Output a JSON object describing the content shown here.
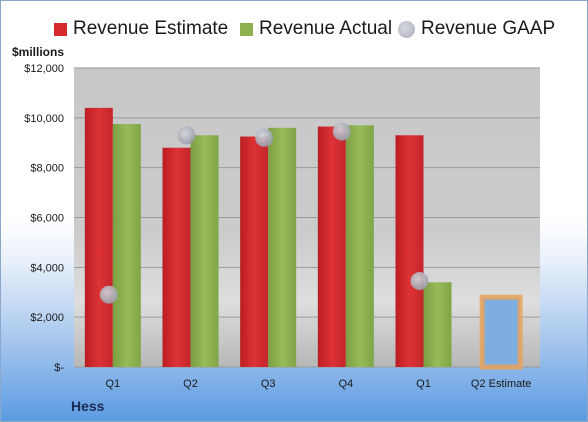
{
  "legend": {
    "estimate": "Revenue Estimate",
    "actual": "Revenue Actual",
    "gaap": "Revenue GAAP"
  },
  "unit_label": "$millions",
  "company": "Hess",
  "colors": {
    "estimate": "#d42a2e",
    "actual": "#8db050",
    "gaap": "#a9abb6",
    "forecast_fill": "#7eaee0",
    "forecast_border": "#e9a25a"
  },
  "chart_data": {
    "type": "bar",
    "categories": [
      "Q1",
      "Q2",
      "Q3",
      "Q4",
      "Q1",
      "Q2 Estimate"
    ],
    "series": [
      {
        "name": "Revenue Estimate",
        "values": [
          10400,
          8800,
          9250,
          9650,
          9300,
          null
        ]
      },
      {
        "name": "Revenue Actual",
        "values": [
          9750,
          9300,
          9600,
          9700,
          3400,
          null
        ]
      },
      {
        "name": "Revenue GAAP",
        "values": [
          2900,
          9300,
          9200,
          9450,
          3450,
          null
        ],
        "marker": "circle"
      },
      {
        "name": "Q2 Estimate",
        "values": [
          null,
          null,
          null,
          null,
          null,
          2800
        ]
      }
    ],
    "y_ticks": [
      "$-",
      "$2,000",
      "$4,000",
      "$6,000",
      "$8,000",
      "$10,000",
      "$12,000"
    ],
    "ylim": [
      0,
      12000
    ],
    "grid": true,
    "legend_position": "top"
  }
}
